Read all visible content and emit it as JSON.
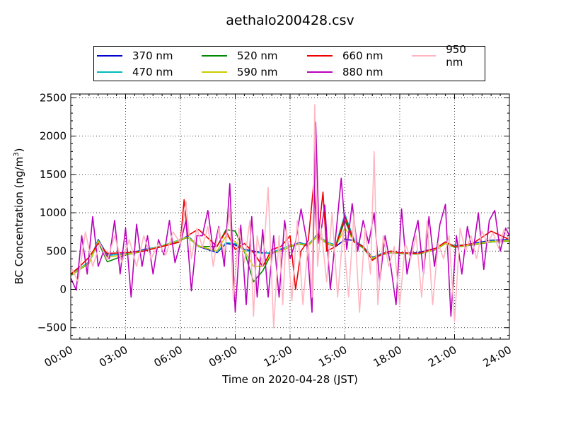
{
  "chart_data": {
    "type": "line",
    "title": "aethalo200428.csv",
    "xlabel": "Time on 2020-04-28 (JST)",
    "ylabel": "BC Concentration (ng/m",
    "ylabel_sup": "3",
    "ylabel_close": ")",
    "xlim": [
      0,
      24
    ],
    "ylim": [
      -650,
      2550
    ],
    "grid": true,
    "legend_position": "top-center",
    "x_ticks": [
      0,
      3,
      6,
      9,
      12,
      15,
      18,
      21,
      24
    ],
    "x_tick_labels": [
      "00:00",
      "03:00",
      "06:00",
      "09:00",
      "12:00",
      "15:00",
      "18:00",
      "21:00",
      "24:00"
    ],
    "y_ticks": [
      -500,
      0,
      500,
      1000,
      1500,
      2000,
      2500
    ],
    "y_tick_labels": [
      "−500",
      "0",
      "500",
      "1000",
      "1500",
      "2000",
      "2500"
    ],
    "series": [
      {
        "name": "370 nm",
        "color": "#0000cc",
        "x": [
          0,
          1,
          1.5,
          2,
          3,
          4,
          5,
          6,
          6.4,
          7,
          8,
          8.5,
          9,
          9.5,
          10,
          10.5,
          11,
          11.5,
          12,
          12.5,
          13,
          13.5,
          14,
          14.5,
          15,
          15.5,
          16,
          16.5,
          17,
          17.5,
          18,
          19,
          20,
          20.5,
          21,
          22,
          23,
          24
        ],
        "y": [
          200,
          350,
          650,
          450,
          460,
          520,
          560,
          640,
          700,
          560,
          480,
          600,
          580,
          520,
          500,
          480,
          470,
          520,
          560,
          610,
          580,
          720,
          600,
          560,
          650,
          640,
          560,
          420,
          460,
          500,
          470,
          480,
          540,
          620,
          560,
          600,
          640,
          650
        ]
      },
      {
        "name": "470 nm",
        "color": "#00bbbb",
        "x": [
          0,
          1,
          1.5,
          2,
          3,
          4,
          5,
          6,
          6.4,
          7,
          8,
          8.5,
          9,
          9.5,
          10,
          10.5,
          11,
          11.5,
          12,
          12.5,
          13,
          13.5,
          14,
          14.5,
          15,
          15.5,
          16,
          16.5,
          17,
          17.5,
          18,
          19,
          20,
          20.5,
          21,
          22,
          23,
          24
        ],
        "y": [
          190,
          360,
          640,
          440,
          470,
          510,
          570,
          650,
          690,
          570,
          490,
          610,
          600,
          510,
          490,
          470,
          480,
          530,
          570,
          600,
          590,
          710,
          620,
          580,
          980,
          650,
          560,
          410,
          470,
          490,
          480,
          470,
          530,
          610,
          570,
          590,
          630,
          640
        ]
      },
      {
        "name": "520 nm",
        "color": "#008800",
        "x": [
          0,
          1,
          1.5,
          2,
          3,
          4,
          5,
          6,
          6.4,
          7,
          8,
          8.5,
          9,
          9.5,
          10,
          10.5,
          11,
          11.5,
          12,
          12.5,
          13,
          13.5,
          14,
          14.5,
          15,
          15.5,
          16,
          16.5,
          17,
          17.5,
          18,
          19,
          20,
          20.5,
          21,
          22,
          23,
          24
        ],
        "y": [
          180,
          340,
          620,
          360,
          450,
          500,
          560,
          640,
          680,
          560,
          560,
          780,
          760,
          500,
          100,
          240,
          480,
          500,
          560,
          590,
          570,
          700,
          600,
          560,
          900,
          620,
          540,
          400,
          450,
          480,
          470,
          460,
          520,
          600,
          550,
          580,
          620,
          630
        ]
      },
      {
        "name": "590 nm",
        "color": "#cccc00",
        "x": [
          0,
          1,
          1.5,
          2,
          3,
          4,
          5,
          6,
          6.4,
          7,
          8,
          8.5,
          9,
          9.5,
          10,
          10.5,
          11,
          11.5,
          12,
          12.5,
          13,
          13.5,
          14,
          14.5,
          15,
          15.5,
          16,
          16.5,
          17,
          17.5,
          18,
          19,
          20,
          20.5,
          21,
          22,
          23,
          24
        ],
        "y": [
          185,
          345,
          630,
          420,
          455,
          505,
          565,
          645,
          685,
          565,
          500,
          700,
          620,
          505,
          300,
          300,
          475,
          505,
          565,
          595,
          575,
          705,
          605,
          565,
          800,
          630,
          550,
          405,
          455,
          485,
          475,
          465,
          525,
          605,
          555,
          585,
          625,
          635
        ]
      },
      {
        "name": "660 nm",
        "color": "#ee0000",
        "x": [
          0,
          0.5,
          1,
          1.5,
          2,
          3,
          4,
          5,
          6,
          6.2,
          6.4,
          6.8,
          7,
          8,
          8.5,
          9,
          9.5,
          10,
          10.5,
          11,
          11.5,
          12,
          12.3,
          12.6,
          13,
          13.3,
          13.5,
          13.8,
          14,
          14.5,
          15,
          15.5,
          16,
          16.5,
          17,
          17.5,
          18,
          19,
          20,
          20.5,
          21,
          22,
          23,
          24
        ],
        "y": [
          200,
          300,
          420,
          600,
          470,
          480,
          500,
          560,
          620,
          1170,
          700,
          760,
          780,
          560,
          760,
          520,
          600,
          480,
          300,
          520,
          560,
          700,
          0,
          500,
          640,
          1400,
          600,
          1270,
          500,
          560,
          950,
          620,
          560,
          380,
          460,
          500,
          480,
          470,
          540,
          620,
          560,
          600,
          760,
          650
        ]
      },
      {
        "name": "880 nm",
        "color": "#bb00bb",
        "x": [
          0,
          0.3,
          0.6,
          0.9,
          1.2,
          1.5,
          1.8,
          2.1,
          2.4,
          2.7,
          3,
          3.3,
          3.6,
          3.9,
          4.2,
          4.5,
          4.8,
          5.1,
          5.4,
          5.7,
          6,
          6.3,
          6.6,
          6.9,
          7.2,
          7.5,
          7.8,
          8.1,
          8.4,
          8.7,
          9,
          9.3,
          9.6,
          9.9,
          10.2,
          10.5,
          10.8,
          11.1,
          11.4,
          11.7,
          12,
          12.3,
          12.6,
          12.9,
          13.2,
          13.4,
          13.6,
          13.9,
          14.2,
          14.5,
          14.8,
          15.1,
          15.4,
          15.7,
          16,
          16.3,
          16.6,
          16.9,
          17.2,
          17.5,
          17.8,
          18.1,
          18.4,
          18.7,
          19,
          19.3,
          19.6,
          19.9,
          20.2,
          20.5,
          20.8,
          21.1,
          21.4,
          21.7,
          22,
          22.3,
          22.6,
          22.9,
          23.2,
          23.5,
          23.8,
          24
        ],
        "y": [
          150,
          -10,
          700,
          200,
          950,
          300,
          500,
          400,
          900,
          200,
          800,
          -100,
          850,
          300,
          700,
          200,
          650,
          450,
          900,
          350,
          600,
          900,
          -20,
          700,
          700,
          1030,
          500,
          820,
          300,
          1380,
          -300,
          840,
          -200,
          950,
          -100,
          780,
          -100,
          700,
          -100,
          900,
          400,
          620,
          1050,
          650,
          -300,
          2180,
          600,
          1100,
          0,
          700,
          1450,
          520,
          1120,
          500,
          900,
          600,
          1000,
          100,
          700,
          320,
          -200,
          1050,
          200,
          600,
          900,
          200,
          950,
          300,
          850,
          1110,
          -350,
          700,
          200,
          820,
          460,
          1000,
          260,
          900,
          1030,
          500,
          800,
          700
        ]
      },
      {
        "name": "950 nm",
        "color": "#ffb6c1",
        "x": [
          0,
          0.4,
          0.8,
          1.2,
          1.6,
          2,
          2.4,
          2.8,
          3.2,
          3.6,
          4,
          4.4,
          4.8,
          5.2,
          5.6,
          6,
          6.3,
          6.6,
          6.9,
          7.2,
          7.5,
          7.8,
          8.1,
          8.4,
          8.7,
          8.9,
          9.2,
          9.5,
          9.8,
          10,
          10.2,
          10.5,
          10.8,
          11.1,
          11.4,
          11.6,
          11.8,
          12.1,
          12.4,
          12.7,
          13,
          13.2,
          13.35,
          13.5,
          13.7,
          14,
          14.3,
          14.6,
          14.9,
          15.2,
          15.5,
          15.8,
          16.1,
          16.4,
          16.6,
          16.8,
          17.1,
          17.4,
          17.7,
          18,
          18.3,
          18.6,
          18.9,
          19.2,
          19.5,
          19.8,
          20.1,
          20.4,
          20.7,
          21,
          21.3,
          21.6,
          21.9,
          22.2,
          22.5,
          22.8,
          23.1,
          23.4,
          23.7,
          24
        ],
        "y": [
          300,
          100,
          750,
          300,
          600,
          380,
          700,
          350,
          650,
          300,
          700,
          400,
          600,
          450,
          750,
          600,
          1150,
          400,
          800,
          550,
          820,
          300,
          800,
          450,
          1050,
          -150,
          800,
          350,
          900,
          -350,
          700,
          300,
          1330,
          -500,
          700,
          -200,
          800,
          -150,
          900,
          -200,
          620,
          -100,
          2410,
          300,
          800,
          100,
          1000,
          -100,
          750,
          -100,
          1000,
          -300,
          800,
          200,
          1800,
          -200,
          700,
          300,
          560,
          -200,
          600,
          400,
          700,
          -100,
          900,
          -200,
          600,
          400,
          700,
          -420,
          800,
          500,
          700,
          400,
          760,
          600,
          740,
          540,
          780,
          640
        ]
      }
    ]
  }
}
